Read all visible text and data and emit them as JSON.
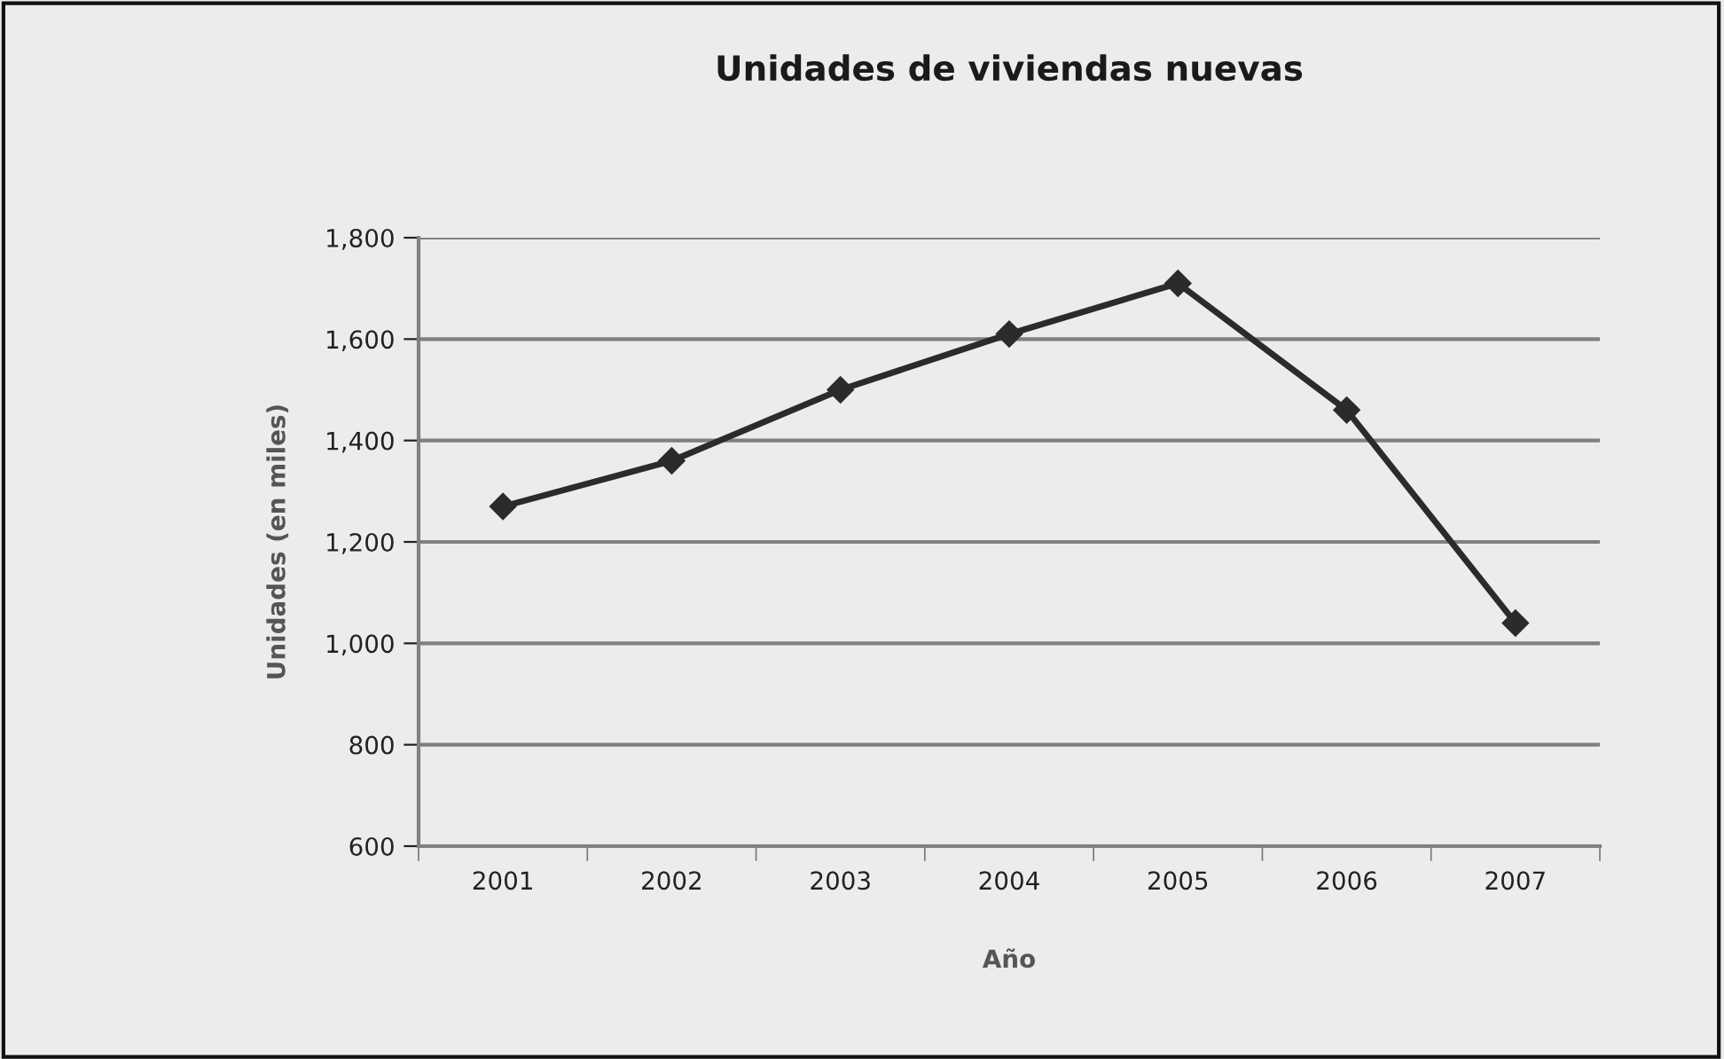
{
  "chart_data": {
    "type": "line",
    "title": "Unidades de viviendas nuevas",
    "xlabel": "Año",
    "ylabel": "Unidades (en miles)",
    "categories": [
      "2001",
      "2002",
      "2003",
      "2004",
      "2005",
      "2006",
      "2007"
    ],
    "series": [
      {
        "color": "#2b2b2b",
        "values": [
          1270,
          1360,
          1500,
          1610,
          1710,
          1460,
          1040
        ]
      }
    ],
    "ylim": [
      600,
      1800
    ],
    "yticks": [
      {
        "value": 600,
        "label": "600"
      },
      {
        "value": 800,
        "label": "800"
      },
      {
        "value": 1000,
        "label": "1,000"
      },
      {
        "value": 1200,
        "label": "1,200"
      },
      {
        "value": 1400,
        "label": "1,400"
      },
      {
        "value": 1600,
        "label": "1,600"
      },
      {
        "value": 1800,
        "label": "1,800"
      }
    ],
    "grid": "y",
    "marker": "diamond",
    "line_style": "solid"
  }
}
